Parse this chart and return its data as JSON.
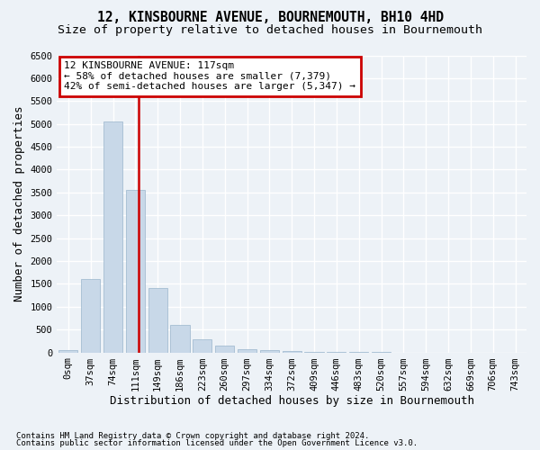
{
  "title1": "12, KINSBOURNE AVENUE, BOURNEMOUTH, BH10 4HD",
  "title2": "Size of property relative to detached houses in Bournemouth",
  "xlabel": "Distribution of detached houses by size in Bournemouth",
  "ylabel": "Number of detached properties",
  "annotation_line1": "12 KINSBOURNE AVENUE: 117sqm",
  "annotation_line2": "← 58% of detached houses are smaller (7,379)",
  "annotation_line3": "42% of semi-detached houses are larger (5,347) →",
  "footer1": "Contains HM Land Registry data © Crown copyright and database right 2024.",
  "footer2": "Contains public sector information licensed under the Open Government Licence v3.0.",
  "bar_color": "#c8d8e8",
  "bar_edge_color": "#9ab5cc",
  "vline_color": "#cc0000",
  "annotation_edge_color": "#cc0000",
  "categories": [
    "0sqm",
    "37sqm",
    "74sqm",
    "111sqm",
    "149sqm",
    "186sqm",
    "223sqm",
    "260sqm",
    "297sqm",
    "334sqm",
    "372sqm",
    "409sqm",
    "446sqm",
    "483sqm",
    "520sqm",
    "557sqm",
    "594sqm",
    "632sqm",
    "669sqm",
    "706sqm",
    "743sqm"
  ],
  "values": [
    50,
    1600,
    5050,
    3550,
    1400,
    600,
    280,
    140,
    80,
    50,
    30,
    15,
    8,
    3,
    2,
    1,
    0,
    0,
    0,
    0,
    0
  ],
  "ylim": [
    0,
    6500
  ],
  "yticks": [
    0,
    500,
    1000,
    1500,
    2000,
    2500,
    3000,
    3500,
    4000,
    4500,
    5000,
    5500,
    6000,
    6500
  ],
  "background_color": "#edf2f7",
  "grid_color": "#ffffff",
  "title_fontsize": 10.5,
  "subtitle_fontsize": 9.5,
  "tick_fontsize": 7.5,
  "axis_label_fontsize": 9,
  "footer_fontsize": 6.5,
  "annotation_fontsize": 8
}
